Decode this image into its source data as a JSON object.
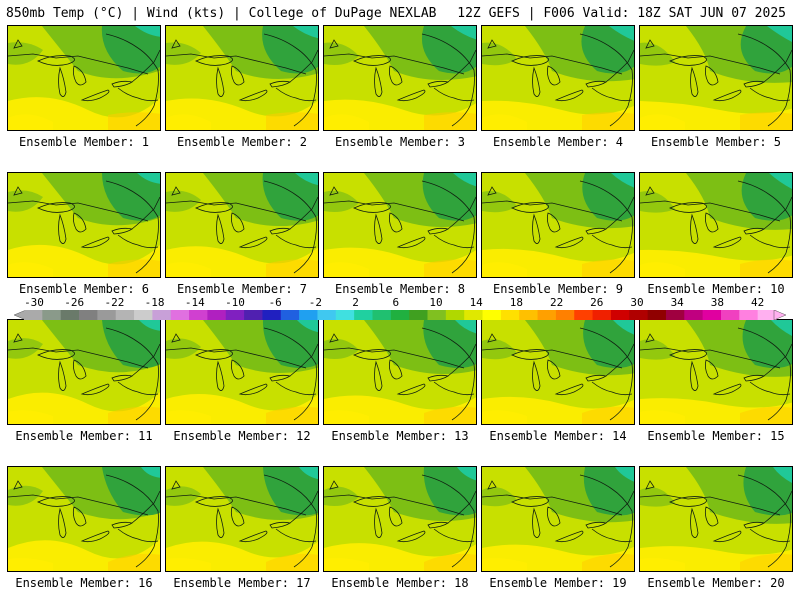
{
  "header": {
    "left": "850mb Temp (°C) | Wind (kts) | College of DuPage NEXLAB",
    "right": "12Z GEFS | F006 Valid: 18Z SAT JUN 07 2025"
  },
  "panels": [
    {
      "label": "Ensemble Member: 1"
    },
    {
      "label": "Ensemble Member: 2"
    },
    {
      "label": "Ensemble Member: 3"
    },
    {
      "label": "Ensemble Member: 4"
    },
    {
      "label": "Ensemble Member: 5"
    },
    {
      "label": "Ensemble Member: 6"
    },
    {
      "label": "Ensemble Member: 7"
    },
    {
      "label": "Ensemble Member: 8"
    },
    {
      "label": "Ensemble Member: 9"
    },
    {
      "label": "Ensemble Member: 10"
    },
    {
      "label": "Ensemble Member: 11"
    },
    {
      "label": "Ensemble Member: 12"
    },
    {
      "label": "Ensemble Member: 13"
    },
    {
      "label": "Ensemble Member: 14"
    },
    {
      "label": "Ensemble Member: 15"
    },
    {
      "label": "Ensemble Member: 16"
    },
    {
      "label": "Ensemble Member: 17"
    },
    {
      "label": "Ensemble Member: 18"
    },
    {
      "label": "Ensemble Member: 19"
    },
    {
      "label": "Ensemble Member: 20"
    }
  ],
  "colorbar": {
    "labels": [
      "-30",
      "-26",
      "-22",
      "-18",
      "-14",
      "-10",
      "-6",
      "-2",
      "2",
      "6",
      "10",
      "14",
      "18",
      "22",
      "26",
      "30",
      "34",
      "38",
      "42"
    ],
    "colors": [
      "#aaaaaa",
      "#8a9a8a",
      "#6a7a6a",
      "#808080",
      "#9a9a9a",
      "#b4b4b4",
      "#cccccc",
      "#c8a0d8",
      "#e070e0",
      "#d040d0",
      "#b020c0",
      "#8020c0",
      "#5020b0",
      "#2020c0",
      "#2060e0",
      "#20a0f0",
      "#40c8f0",
      "#40e0e0",
      "#20d0a0",
      "#20c070",
      "#20b040",
      "#40a020",
      "#80c020",
      "#b0d800",
      "#e0e800",
      "#ffff00",
      "#ffe000",
      "#ffc000",
      "#ffa000",
      "#ff8000",
      "#ff4000",
      "#f02000",
      "#d00000",
      "#b00000",
      "#900000",
      "#a00040",
      "#c00080",
      "#e000a0",
      "#f040c0",
      "#ff80e0",
      "#ffb0f0"
    ]
  },
  "palette": {
    "base": "#c8e000",
    "dark_green": "#28a040",
    "mid_green": "#70b818",
    "teal": "#20c898",
    "yellow": "#ffee00",
    "orange": "#ffcc00"
  }
}
